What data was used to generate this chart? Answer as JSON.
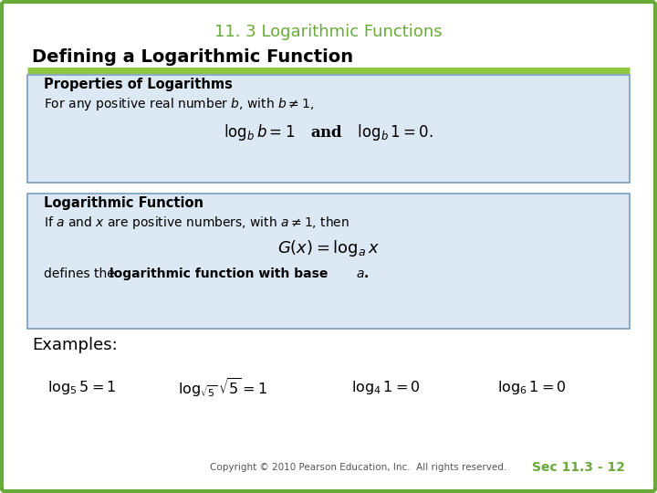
{
  "title": "11. 3 Logarithmic Functions",
  "subtitle": "Defining a Logarithmic Function",
  "title_color": "#6aaa3a",
  "subtitle_color": "#000000",
  "bg_color": "#ffffff",
  "border_color": "#6aaa3a",
  "divider_color": "#8dc63f",
  "box_bg_color": "#dce9f5",
  "box_border_color": "#7a9bbf",
  "copyright": "Copyright © 2010 Pearson Education, Inc.  All rights reserved.",
  "sec_label": "Sec 11.3 - 12",
  "sec_label_color": "#6aaa3a"
}
